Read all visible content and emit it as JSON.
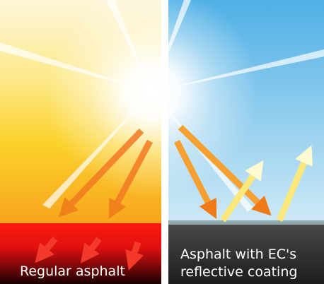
{
  "panels": [
    {
      "label": "Regular asphalt"
    },
    {
      "label_lines": [
        "Asphalt with  EC's",
        "reflective coating"
      ]
    }
  ]
}
